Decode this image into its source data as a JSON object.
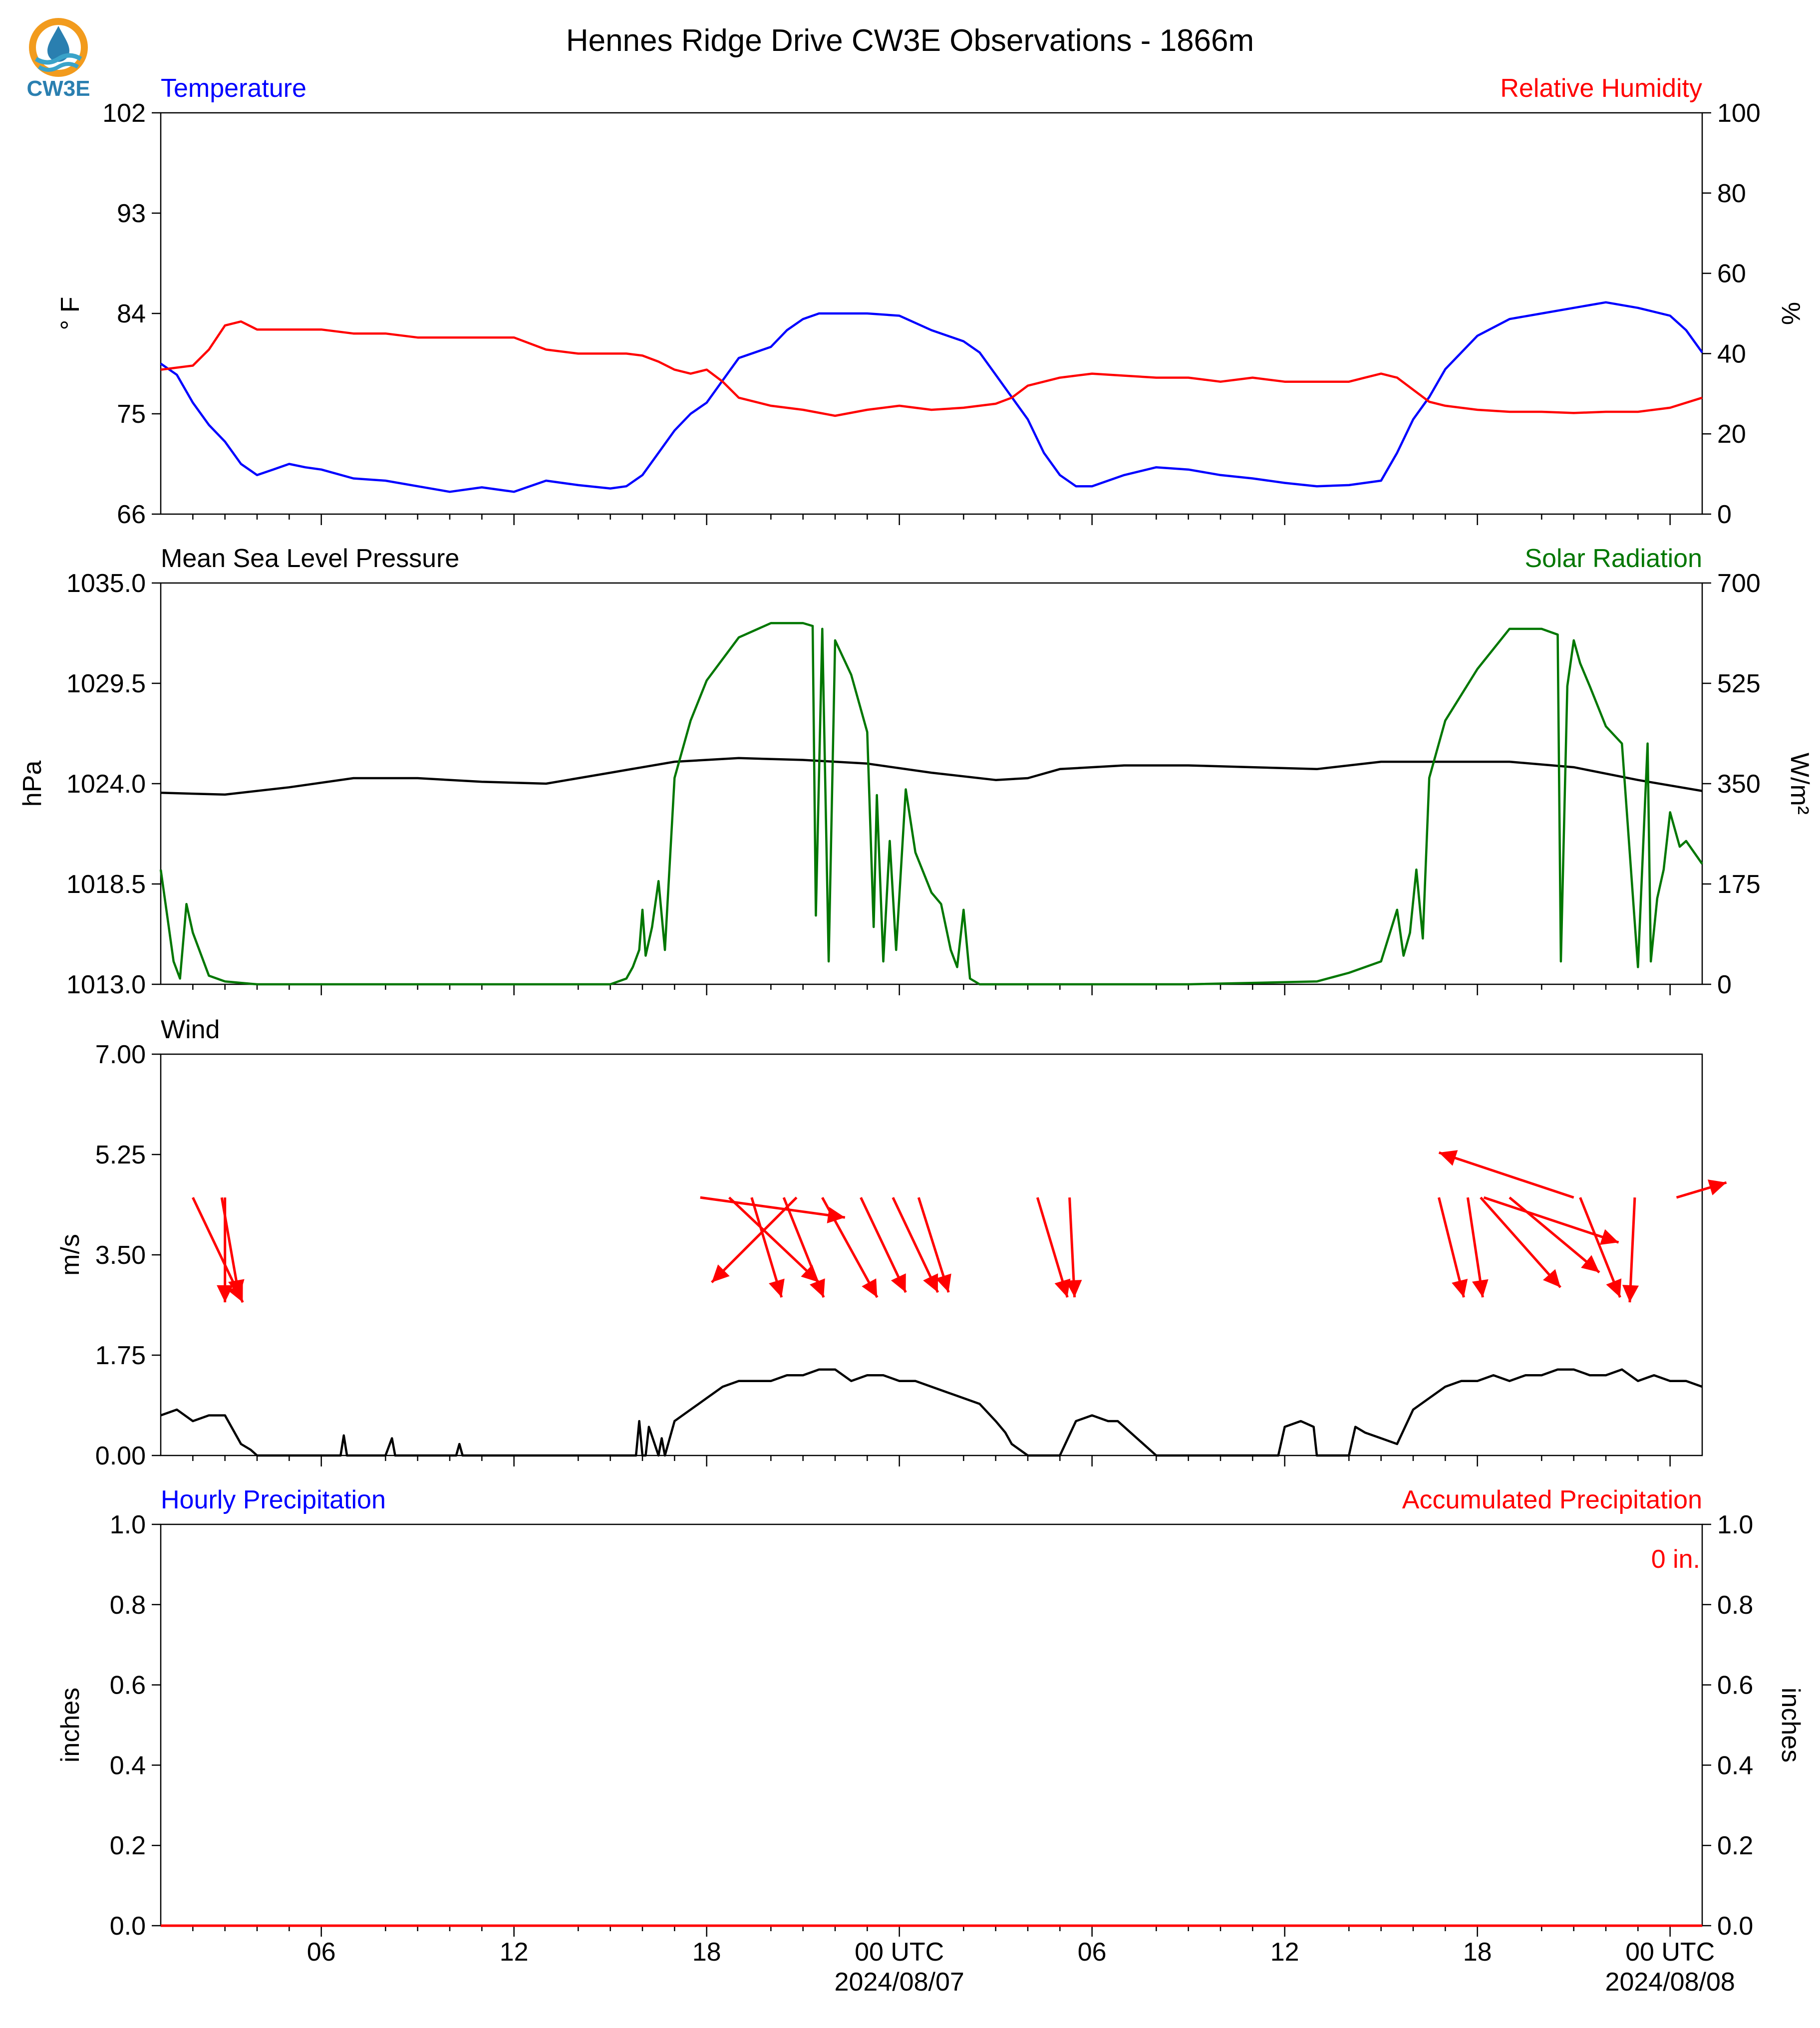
{
  "title": "Hennes Ridge Drive CW3E Observations - 1866m",
  "logo": {
    "text": "CW3E",
    "colors": {
      "sun": "#f29b1d",
      "drop": "#2a7fb0",
      "waves": "#3aa3c9"
    }
  },
  "x_axis": {
    "ticks": [
      "06",
      "12",
      "18",
      "00 UTC",
      "06",
      "12",
      "18",
      "00 UTC"
    ],
    "date_labels": [
      {
        "after_tick": 3,
        "text": "2024/08/07"
      },
      {
        "after_tick": 7,
        "text": "2024/08/08"
      }
    ],
    "range_hours": [
      0,
      48
    ]
  },
  "chart_data": [
    {
      "type": "line",
      "left_title": "Temperature",
      "right_title": "Relative Humidity",
      "left_color": "#0000ff",
      "right_color": "#ff0000",
      "left_ylabel": "° F",
      "right_ylabel": "%",
      "left_ylim": [
        66,
        102
      ],
      "right_ylim": [
        0,
        100
      ],
      "left_ticks": [
        "102",
        "93",
        "84",
        "75",
        "66"
      ],
      "right_ticks": [
        "100",
        "80",
        "60",
        "40",
        "20",
        "0"
      ],
      "series": [
        {
          "axis": "left",
          "color": "#0000ff",
          "x": [
            0,
            0.5,
            1,
            1.5,
            2,
            2.5,
            3,
            3.5,
            4,
            4.5,
            5,
            6,
            7,
            8,
            9,
            10,
            11,
            12,
            13,
            14,
            14.5,
            15,
            15.5,
            16,
            16.5,
            17,
            17.5,
            18,
            19,
            19.5,
            20,
            20.5,
            21,
            22,
            23,
            24,
            25,
            25.5,
            26,
            26.5,
            27,
            27.5,
            28,
            28.5,
            29,
            30,
            31,
            32,
            33,
            34,
            35,
            36,
            37,
            38,
            38.5,
            39,
            39.5,
            40,
            40.5,
            41,
            42,
            43,
            44,
            45,
            46,
            47,
            47.5,
            48
          ],
          "values": [
            79.5,
            78.5,
            76,
            74,
            72.5,
            70.5,
            69.5,
            70,
            70.5,
            70.2,
            70,
            69.2,
            69,
            68.5,
            68,
            68.4,
            68,
            69,
            68.6,
            68.3,
            68.5,
            69.5,
            71.5,
            73.5,
            75,
            76,
            78,
            80,
            81,
            82.5,
            83.5,
            84,
            84,
            84,
            83.8,
            82.5,
            81.5,
            80.5,
            78.5,
            76.5,
            74.5,
            71.5,
            69.5,
            68.5,
            68.5,
            69.5,
            70.2,
            70,
            69.5,
            69.2,
            68.8,
            68.5,
            68.6,
            69,
            71.5,
            74.5,
            76.5,
            79,
            80.5,
            82,
            83.5,
            84,
            84.5,
            85,
            84.5,
            83.8,
            82.5,
            80.5
          ]
        },
        {
          "axis": "right",
          "color": "#ff0000",
          "x": [
            0,
            1,
            1.5,
            2,
            2.5,
            3,
            4,
            5,
            6,
            7,
            8,
            9,
            10,
            11,
            12,
            13,
            14,
            14.5,
            15,
            15.5,
            16,
            16.5,
            17,
            17.5,
            18,
            19,
            20,
            21,
            22,
            23,
            24,
            25,
            26,
            26.5,
            27,
            28,
            29,
            30,
            31,
            32,
            33,
            34,
            35,
            36,
            37,
            37.5,
            38,
            38.5,
            39,
            39.5,
            40,
            41,
            42,
            43,
            44,
            45,
            46,
            47,
            48
          ],
          "values": [
            36,
            37,
            41,
            47,
            48,
            46,
            46,
            46,
            45,
            45,
            44,
            44,
            44,
            44,
            41,
            40,
            40,
            40,
            39.5,
            38,
            36,
            35,
            36,
            33,
            29,
            27,
            26,
            24.5,
            26,
            27,
            26,
            26.5,
            27.5,
            29,
            32,
            34,
            35,
            34.5,
            34,
            34,
            33,
            34,
            33,
            33,
            33,
            34,
            35,
            34,
            31,
            28,
            27,
            26,
            25.5,
            25.5,
            25.2,
            25.5,
            25.5,
            26.5,
            29
          ]
        }
      ]
    },
    {
      "type": "line",
      "left_title": "Mean Sea Level Pressure",
      "right_title": "Solar Radiation",
      "left_color": "#000000",
      "right_color": "#007700",
      "left_ylabel": "hPa",
      "right_ylabel": "W/m²",
      "left_ylim": [
        1013.0,
        1035.0
      ],
      "right_ylim": [
        0,
        700
      ],
      "left_ticks": [
        "1035.0",
        "1029.5",
        "1024.0",
        "1018.5",
        "1013.0"
      ],
      "right_ticks": [
        "700",
        "525",
        "350",
        "175",
        "0"
      ],
      "series": [
        {
          "axis": "left",
          "color": "#000000",
          "x": [
            0,
            2,
            4,
            6,
            8,
            10,
            12,
            14,
            16,
            18,
            20,
            22,
            24,
            26,
            27,
            28,
            30,
            32,
            34,
            36,
            38,
            40,
            42,
            44,
            46,
            48
          ],
          "values": [
            1023.5,
            1023.4,
            1023.8,
            1024.3,
            1024.3,
            1024.1,
            1024.0,
            1024.6,
            1025.2,
            1025.4,
            1025.3,
            1025.1,
            1024.6,
            1024.2,
            1024.3,
            1024.8,
            1025.0,
            1025.0,
            1024.9,
            1024.8,
            1025.2,
            1025.2,
            1025.2,
            1024.9,
            1024.2,
            1023.6
          ]
        },
        {
          "axis": "right",
          "color": "#007700",
          "x": [
            0,
            0.2,
            0.4,
            0.6,
            0.8,
            1.0,
            1.2,
            1.5,
            2.0,
            3,
            5,
            8,
            12,
            13,
            14,
            14.5,
            14.7,
            14.9,
            15.0,
            15.1,
            15.3,
            15.5,
            15.7,
            16.0,
            16.5,
            17,
            18,
            19,
            20,
            20.3,
            20.4,
            20.6,
            20.8,
            21,
            21.5,
            22,
            22.2,
            22.3,
            22.5,
            22.7,
            22.9,
            23.2,
            23.5,
            24,
            24.3,
            24.6,
            24.8,
            25.0,
            25.2,
            25.5,
            25.8,
            26,
            26.5,
            28,
            32,
            36,
            37,
            38,
            38.5,
            38.7,
            38.9,
            39.1,
            39.3,
            39.5,
            40,
            41,
            42,
            43,
            43.5,
            43.6,
            43.8,
            44,
            44.2,
            44.5,
            45,
            45.5,
            46,
            46.3,
            46.4,
            46.6,
            46.8,
            47,
            47.3,
            47.5,
            48
          ],
          "values": [
            200,
            120,
            40,
            10,
            140,
            90,
            60,
            15,
            5,
            0,
            0,
            0,
            0,
            0,
            0,
            10,
            30,
            60,
            130,
            50,
            100,
            180,
            60,
            360,
            460,
            530,
            605,
            630,
            630,
            625,
            120,
            620,
            40,
            600,
            540,
            440,
            100,
            330,
            40,
            250,
            60,
            340,
            230,
            160,
            140,
            60,
            30,
            130,
            10,
            0,
            0,
            0,
            0,
            0,
            0,
            5,
            20,
            40,
            130,
            50,
            90,
            200,
            80,
            360,
            460,
            550,
            620,
            620,
            610,
            40,
            520,
            600,
            560,
            520,
            450,
            420,
            30,
            420,
            40,
            150,
            200,
            300,
            240,
            250,
            210
          ]
        }
      ]
    },
    {
      "type": "line",
      "left_title": "Wind",
      "left_color": "#000000",
      "left_ylabel": "m/s",
      "left_ylim": [
        0,
        7
      ],
      "left_ticks": [
        "7.00",
        "5.25",
        "3.50",
        "1.75",
        "0.00"
      ],
      "series": [
        {
          "name": "",
          "axis": "left",
          "color": "#000000",
          "x": [
            0,
            0.5,
            1,
            1.5,
            2,
            2.5,
            2.8,
            3,
            3.5,
            4,
            5,
            5.6,
            5.7,
            5.8,
            6,
            7,
            7.2,
            7.3,
            7.4,
            8,
            9.2,
            9.3,
            9.4,
            10,
            12,
            14,
            14.8,
            14.9,
            15,
            15.1,
            15.2,
            15.5,
            15.6,
            15.7,
            16,
            16.5,
            17,
            17.5,
            18,
            18.5,
            19,
            19.5,
            20,
            20.5,
            21,
            21.5,
            22,
            22.5,
            23,
            23.5,
            24,
            24.5,
            25,
            25.5,
            26,
            26.3,
            26.5,
            27,
            27.5,
            28,
            28.5,
            29,
            29.5,
            29.8,
            30,
            31,
            32,
            34,
            34.8,
            35,
            35.5,
            35.9,
            36,
            37,
            37.2,
            37.5,
            38,
            38.5,
            39,
            39.5,
            40,
            40.5,
            41,
            41.5,
            42,
            42.5,
            43,
            43.5,
            44,
            44.5,
            45,
            45.5,
            46,
            46.5,
            47,
            47.5,
            48
          ],
          "values": [
            0.7,
            0.8,
            0.6,
            0.7,
            0.7,
            0.2,
            0.1,
            0.0,
            0.0,
            0.0,
            0.0,
            0.0,
            0.35,
            0.0,
            0.0,
            0.0,
            0.3,
            0.0,
            0.0,
            0.0,
            0.0,
            0.2,
            0.0,
            0.0,
            0.0,
            0.0,
            0.0,
            0.6,
            0.0,
            0.0,
            0.5,
            0.0,
            0.3,
            0.0,
            0.6,
            0.8,
            1.0,
            1.2,
            1.3,
            1.3,
            1.3,
            1.4,
            1.4,
            1.5,
            1.5,
            1.3,
            1.4,
            1.4,
            1.3,
            1.3,
            1.2,
            1.1,
            1.0,
            0.9,
            0.6,
            0.4,
            0.2,
            0.0,
            0.0,
            0.0,
            0.6,
            0.7,
            0.6,
            0.6,
            0.5,
            0.0,
            0.0,
            0.0,
            0.0,
            0.5,
            0.6,
            0.5,
            0.0,
            0.0,
            0.5,
            0.4,
            0.3,
            0.2,
            0.8,
            1.0,
            1.2,
            1.3,
            1.3,
            1.4,
            1.3,
            1.4,
            1.4,
            1.5,
            1.5,
            1.4,
            1.4,
            1.5,
            1.3,
            1.4,
            1.3,
            1.3,
            1.2
          ]
        }
      ],
      "wind_vectors": {
        "color": "#ff0000",
        "note": "direction arrows every 1 h",
        "samples": [
          {
            "x": 1.0,
            "dx": 1.0,
            "dy": -2.1
          },
          {
            "x": 1.9,
            "dx": 0.35,
            "dy": -2.0
          },
          {
            "x": 2.0,
            "dx": 0.0,
            "dy": -2.1
          },
          {
            "x": 16.8,
            "dx": 2.9,
            "dy": -0.4
          },
          {
            "x": 17.7,
            "dx": 1.8,
            "dy": -1.7
          },
          {
            "x": 18.4,
            "dx": 0.6,
            "dy": -2.0
          },
          {
            "x": 19.4,
            "dx": 0.8,
            "dy": -2.0
          },
          {
            "x": 19.8,
            "dx": -1.7,
            "dy": -1.7
          },
          {
            "x": 20.6,
            "dx": 1.1,
            "dy": -2.0
          },
          {
            "x": 21.8,
            "dx": 0.9,
            "dy": -1.9
          },
          {
            "x": 22.8,
            "dx": 0.9,
            "dy": -1.9
          },
          {
            "x": 23.6,
            "dx": 0.6,
            "dy": -1.9
          },
          {
            "x": 27.3,
            "dx": 0.6,
            "dy": -2.0
          },
          {
            "x": 28.3,
            "dx": 0.1,
            "dy": -2.0
          },
          {
            "x": 39.8,
            "dx": 0.5,
            "dy": -2.0
          },
          {
            "x": 40.7,
            "dx": 0.3,
            "dy": -2.0
          },
          {
            "x": 41.2,
            "dx": 2.7,
            "dy": -0.9
          },
          {
            "x": 41.1,
            "dx": 1.6,
            "dy": -1.8
          },
          {
            "x": 42.0,
            "dx": 1.8,
            "dy": -1.5
          },
          {
            "x": 44.0,
            "dx": -2.7,
            "dy": 0.9
          },
          {
            "x": 44.2,
            "dx": 0.8,
            "dy": -2.0
          },
          {
            "x": 45.9,
            "dx": -0.1,
            "dy": -2.1
          },
          {
            "x": 47.2,
            "dx": 1.0,
            "dy": 0.3
          }
        ]
      }
    },
    {
      "type": "bar",
      "left_title": "Hourly Precipitation",
      "right_title": "Accumulated Precipitation",
      "left_color": "#0000ff",
      "right_color": "#ff0000",
      "left_ylabel": "inches",
      "right_ylabel": "inches",
      "left_ylim": [
        0,
        1
      ],
      "right_ylim": [
        0,
        1
      ],
      "left_ticks": [
        "1.0",
        "0.8",
        "0.6",
        "0.4",
        "0.2",
        "0.0"
      ],
      "right_ticks": [
        "1.0",
        "0.8",
        "0.6",
        "0.4",
        "0.2",
        "0.0"
      ],
      "accumulated_label": "0 in.",
      "series": [
        {
          "name": "Hourly Precipitation",
          "values": [
            0
          ]
        },
        {
          "name": "Accumulated Precipitation",
          "values": [
            0
          ]
        }
      ]
    }
  ]
}
